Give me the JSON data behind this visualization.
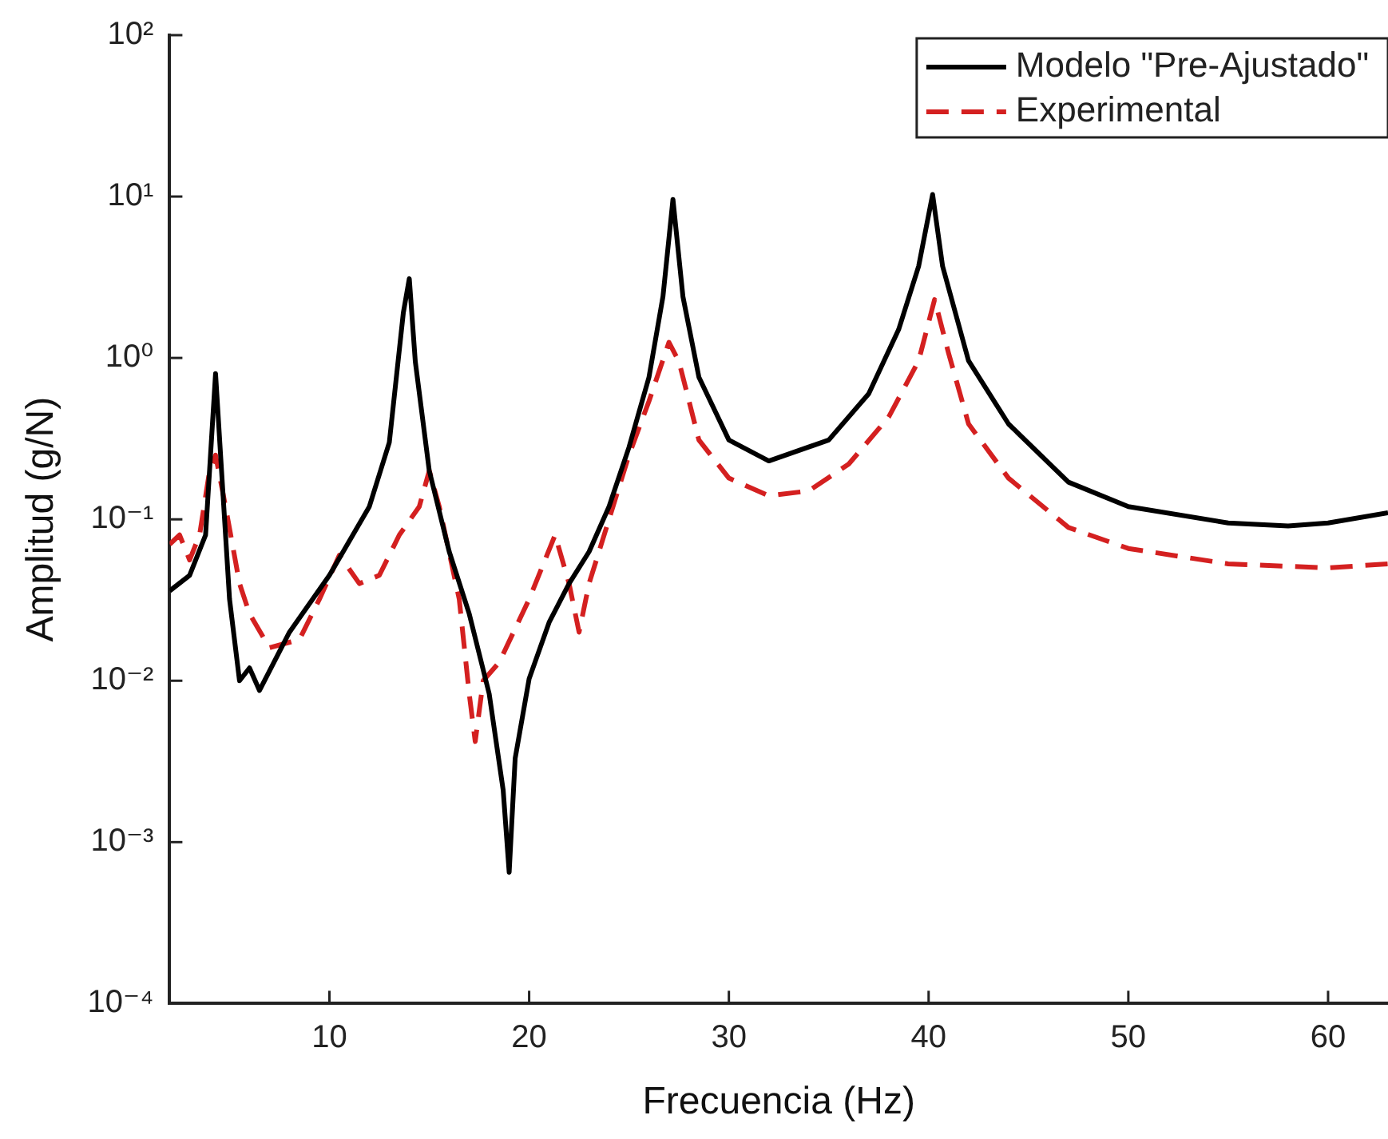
{
  "chart_data": {
    "type": "line",
    "xlabel": "Frecuencia (Hz)",
    "ylabel": "Amplitud (g/N)",
    "log": "y",
    "grid": false,
    "legend": "top right",
    "marker": "none",
    "xlim": [
      2,
      63
    ],
    "xticks": [
      10,
      20,
      30,
      40,
      50,
      60
    ],
    "ylim": [
      0.0001,
      100
    ],
    "yticks": [
      {
        "value": 0.0001,
        "label": "10⁻⁴"
      },
      {
        "value": 0.001,
        "label": "10⁻³"
      },
      {
        "value": 0.01,
        "label": "10⁻²"
      },
      {
        "value": 0.1,
        "label": "10⁻¹"
      },
      {
        "value": 1,
        "label": "10⁰"
      },
      {
        "value": 10,
        "label": "10¹"
      },
      {
        "value": 100,
        "label": "10²"
      }
    ],
    "series": [
      {
        "name": "Modelo \"Pre-Ajustado\"",
        "color": "#000000",
        "line_style": "solid",
        "x": [
          2,
          3,
          3.8,
          4.3,
          4.6,
          5,
          5.5,
          6,
          6.5,
          8,
          10,
          12,
          13,
          13.7,
          14,
          14.3,
          15,
          16,
          17,
          18,
          18.7,
          19,
          19.3,
          20,
          21,
          22,
          23,
          24,
          25,
          26,
          26.7,
          27.2,
          27.7,
          28.5,
          30,
          32,
          35,
          37,
          38.5,
          39.5,
          40.2,
          40.7,
          42,
          44,
          47,
          50,
          55,
          58,
          60,
          63
        ],
        "values": [
          0.036,
          0.045,
          0.08,
          0.8,
          0.2,
          0.032,
          0.01,
          0.012,
          0.0087,
          0.02,
          0.045,
          0.12,
          0.3,
          1.9,
          3.1,
          0.95,
          0.2,
          0.063,
          0.026,
          0.0083,
          0.0021,
          0.00065,
          0.0033,
          0.0103,
          0.023,
          0.04,
          0.063,
          0.12,
          0.28,
          0.76,
          2.4,
          9.6,
          2.4,
          0.76,
          0.31,
          0.23,
          0.31,
          0.6,
          1.5,
          3.7,
          10.3,
          3.7,
          0.96,
          0.39,
          0.17,
          0.12,
          0.095,
          0.091,
          0.095,
          0.11
        ]
      },
      {
        "name": "Experimental",
        "color": "#d42020",
        "line_style": "dashed",
        "x": [
          2,
          2.5,
          3,
          3.5,
          4,
          4.3,
          4.8,
          5.5,
          6,
          7,
          8.5,
          9.5,
          10.5,
          11.5,
          12.5,
          13.5,
          14.5,
          15,
          15.5,
          16.5,
          17,
          17.3,
          17.7,
          18.5,
          20,
          21.3,
          22,
          22.5,
          23,
          24,
          25,
          26,
          27,
          27.5,
          28.5,
          30,
          32,
          34,
          36,
          38,
          39.5,
          40.3,
          41,
          42,
          44,
          47,
          50,
          55,
          60,
          63
        ],
        "values": [
          0.07,
          0.08,
          0.056,
          0.08,
          0.2,
          0.25,
          0.12,
          0.04,
          0.026,
          0.016,
          0.018,
          0.032,
          0.06,
          0.04,
          0.045,
          0.08,
          0.12,
          0.2,
          0.12,
          0.032,
          0.0083,
          0.0042,
          0.01,
          0.013,
          0.032,
          0.08,
          0.04,
          0.02,
          0.04,
          0.1,
          0.25,
          0.54,
          1.25,
          0.95,
          0.31,
          0.18,
          0.14,
          0.15,
          0.22,
          0.43,
          0.96,
          2.3,
          1.07,
          0.39,
          0.18,
          0.089,
          0.066,
          0.053,
          0.05,
          0.053
        ]
      }
    ]
  }
}
